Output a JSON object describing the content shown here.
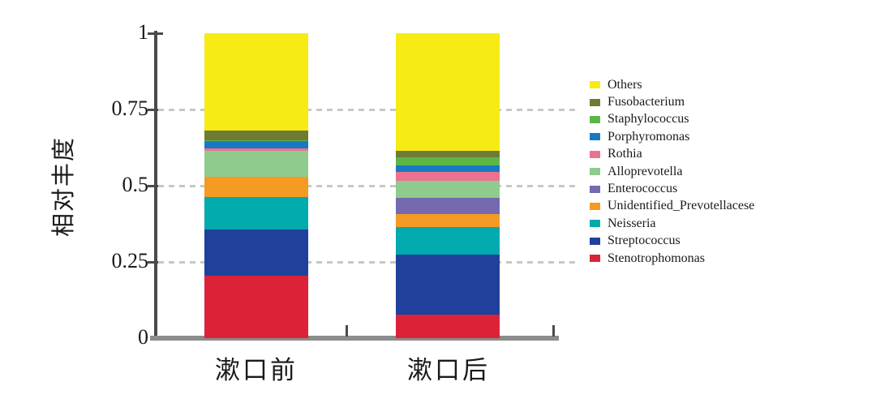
{
  "chart_data": {
    "type": "bar",
    "stacked": true,
    "title": "",
    "xlabel": "",
    "ylabel": "相对丰度",
    "categories": [
      "漱口前",
      "漱口后"
    ],
    "ylim": [
      0,
      1
    ],
    "yticks": [
      {
        "label": "0",
        "value": 0
      },
      {
        "label": "0.25",
        "value": 0.25
      },
      {
        "label": "0.5",
        "value": 0.5
      },
      {
        "label": "0.75",
        "value": 0.75
      },
      {
        "label": "1",
        "value": 1
      }
    ],
    "grid": {
      "horizontal_dashed_at": [
        0.25,
        0.5,
        0.75
      ],
      "color": "#c7c7c7"
    },
    "legend_position": "right",
    "axis_colors": {
      "y_spine": "#4a4a4a",
      "x_baseline": "#8c8c8c"
    },
    "series_bottom_to_top": [
      {
        "name": "Stenotrophomonas",
        "color": "#DC2239",
        "values": [
          0.205,
          0.076
        ]
      },
      {
        "name": "Streptococcus",
        "color": "#1F419B",
        "values": [
          0.152,
          0.199
        ]
      },
      {
        "name": "Neisseria",
        "color": "#00AAAD",
        "values": [
          0.107,
          0.088
        ]
      },
      {
        "name": "Unidentified_Prevotellacese",
        "color": "#F59A22",
        "values": [
          0.064,
          0.043
        ]
      },
      {
        "name": "Enterococcus",
        "color": "#7569AF",
        "values": [
          0.002,
          0.053
        ]
      },
      {
        "name": "Alloprevotella",
        "color": "#8FCB8C",
        "values": [
          0.084,
          0.056
        ]
      },
      {
        "name": "Rothia",
        "color": "#EC7390",
        "values": [
          0.009,
          0.03
        ]
      },
      {
        "name": "Porphyromonas",
        "color": "#1879C2",
        "values": [
          0.023,
          0.021
        ]
      },
      {
        "name": "Staphylococcus",
        "color": "#5CB647",
        "values": [
          0.002,
          0.028
        ]
      },
      {
        "name": "Fusobacterium",
        "color": "#6E7B33",
        "values": [
          0.034,
          0.021
        ]
      },
      {
        "name": "Others",
        "color": "#F7EB16",
        "values": [
          0.318,
          0.385
        ]
      }
    ],
    "legend_top_to_bottom": [
      "Others",
      "Fusobacterium",
      "Staphylococcus",
      "Porphyromonas",
      "Rothia",
      "Alloprevotella",
      "Enterococcus",
      "Unidentified_Prevotellacese",
      "Neisseria",
      "Streptococcus",
      "Stenotrophomonas"
    ]
  }
}
